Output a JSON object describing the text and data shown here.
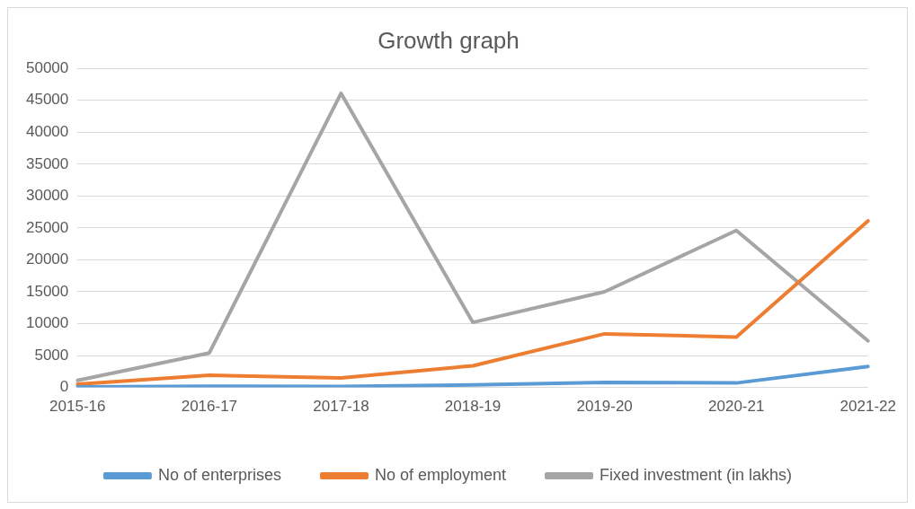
{
  "chart_data": {
    "type": "line",
    "title": "Growth graph",
    "categories": [
      "2015-16",
      "2016-17",
      "2017-18",
      "2018-19",
      "2019-20",
      "2020-21",
      "2021-22"
    ],
    "series": [
      {
        "name": "No of enterprises",
        "color": "#5b9bd5",
        "values": [
          100,
          200,
          150,
          400,
          800,
          700,
          3300
        ]
      },
      {
        "name": "No of employment",
        "color": "#ed7d31",
        "values": [
          500,
          1900,
          1500,
          3400,
          8400,
          7900,
          26100
        ]
      },
      {
        "name": "Fixed investment (in lakhs)",
        "color": "#a5a5a5",
        "values": [
          1100,
          5400,
          46100,
          10200,
          15000,
          24600,
          7300
        ]
      }
    ],
    "ylim": [
      0,
      50000
    ],
    "yticks": [
      0,
      5000,
      10000,
      15000,
      20000,
      25000,
      30000,
      35000,
      40000,
      45000,
      50000
    ],
    "grid": "y",
    "legend": "bottom",
    "marker": "none",
    "line_style": "solid"
  }
}
